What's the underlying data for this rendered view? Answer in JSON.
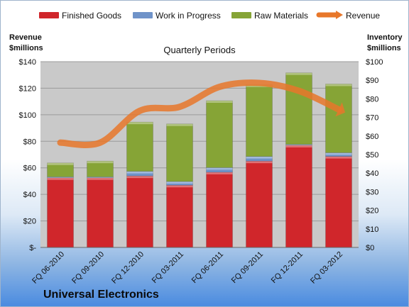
{
  "company": "Universal Electronics",
  "colors": {
    "finished_goods": "#d0262b",
    "work_in_progress": "#6f93c9",
    "raw_materials": "#86a436",
    "revenue": "#e8772a",
    "plot_bg": "#c9c9c9"
  },
  "chart_data": {
    "type": "bar",
    "subtitle": "Quarterly Periods",
    "left_axis_title": [
      "Revenue",
      "$millions"
    ],
    "right_axis_title": [
      "Inventory",
      "$millions"
    ],
    "categories": [
      "FQ 06-2010",
      "FQ 09-2010",
      "FQ 12-2010",
      "FQ 03-2011",
      "FQ 06-2011",
      "FQ 09-2011",
      "FQ 12-2011",
      "FQ 03-2012"
    ],
    "left_ylim": [
      0,
      140
    ],
    "left_ticks": [
      "$-",
      "$20",
      "$40",
      "$60",
      "$80",
      "$100",
      "$120",
      "$140"
    ],
    "right_ylim": [
      0,
      100
    ],
    "right_ticks": [
      "$0",
      "$10",
      "$20",
      "$30",
      "$40",
      "$50",
      "$60",
      "$70",
      "$80",
      "$90",
      "$100"
    ],
    "legend": [
      "Finished Goods",
      "Work in Progress",
      "Raw Materials",
      "Revenue"
    ],
    "grid": true,
    "series": [
      {
        "name": "Finished Goods",
        "type": "stacked-bar",
        "axis": "right",
        "values": [
          37.5,
          37.5,
          38.5,
          33.5,
          40.5,
          46.5,
          55.0,
          49.0
        ]
      },
      {
        "name": "Work in Progress",
        "type": "stacked-bar",
        "axis": "right",
        "values": [
          0.5,
          0.5,
          2.5,
          2.0,
          2.5,
          2.5,
          0.5,
          2.0
        ]
      },
      {
        "name": "Raw Materials",
        "type": "stacked-bar",
        "axis": "right",
        "values": [
          7.5,
          8.5,
          26.5,
          31.0,
          36.0,
          38.5,
          38.5,
          37.0
        ]
      },
      {
        "name": "Revenue",
        "type": "line",
        "axis": "left",
        "values": [
          79,
          79,
          103,
          106,
          121,
          124,
          118,
          104
        ]
      }
    ]
  }
}
